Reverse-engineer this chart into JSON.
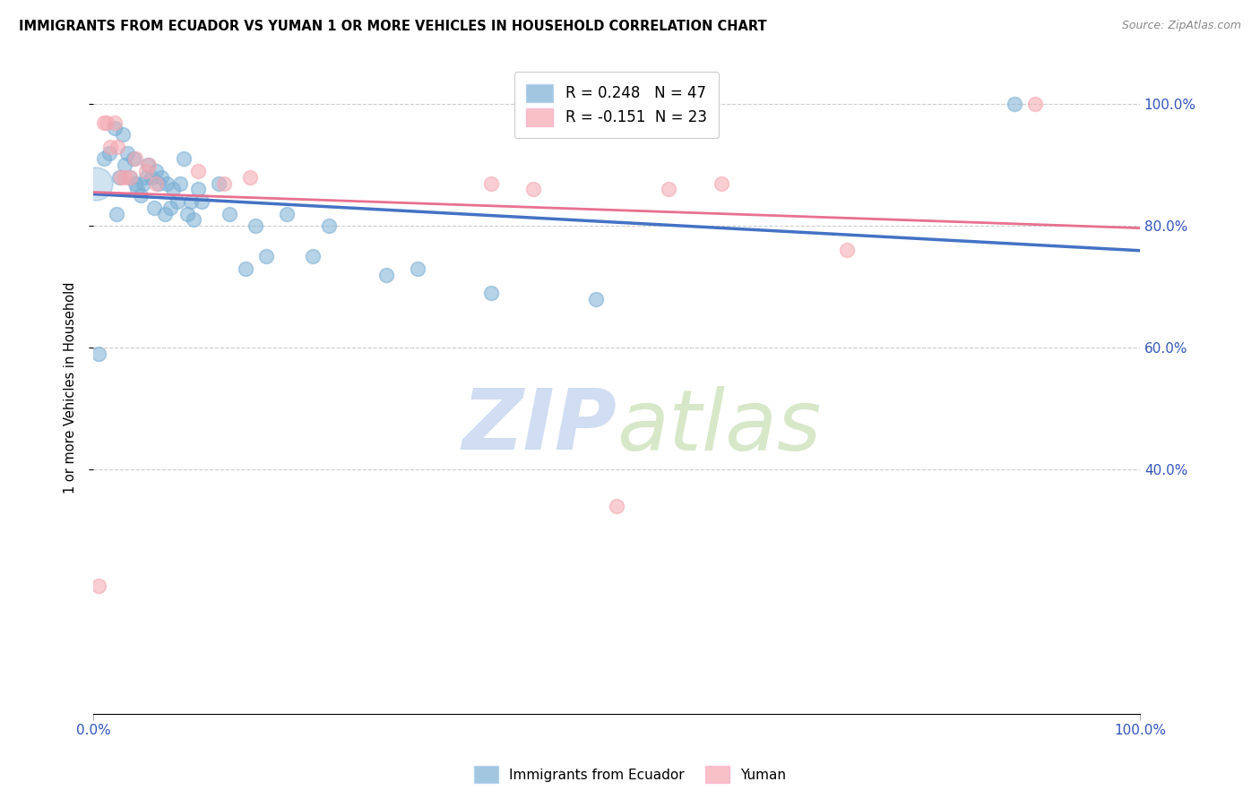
{
  "title": "IMMIGRANTS FROM ECUADOR VS YUMAN 1 OR MORE VEHICLES IN HOUSEHOLD CORRELATION CHART",
  "source": "Source: ZipAtlas.com",
  "ylabel": "1 or more Vehicles in Household",
  "legend_labels": [
    "Immigrants from Ecuador",
    "Yuman"
  ],
  "r_ecuador": 0.248,
  "n_ecuador": 47,
  "r_yuman": -0.151,
  "n_yuman": 23,
  "blue_color": "#7BAFD4",
  "pink_color": "#F4A7B0",
  "blue_line_color": "#4472C4",
  "pink_line_color": "#E87090",
  "watermark_zip": "ZIP",
  "watermark_atlas": "atlas",
  "ecuador_x": [
    0.5,
    1.0,
    1.5,
    2.0,
    2.2,
    2.5,
    2.8,
    3.0,
    3.2,
    3.5,
    3.8,
    4.0,
    4.2,
    4.5,
    4.8,
    5.0,
    5.2,
    5.5,
    5.8,
    6.0,
    6.2,
    6.5,
    6.8,
    7.0,
    7.3,
    7.6,
    8.0,
    8.3,
    8.6,
    9.0,
    9.3,
    9.6,
    10.0,
    10.3,
    12.0,
    13.0,
    14.5,
    15.5,
    16.5,
    18.5,
    21.0,
    22.5,
    28.0,
    31.0,
    38.0,
    48.0,
    88.0
  ],
  "ecuador_y": [
    59,
    91,
    92,
    96,
    82,
    88,
    95,
    90,
    92,
    88,
    91,
    87,
    86,
    85,
    87,
    88,
    90,
    88,
    83,
    89,
    87,
    88,
    82,
    87,
    83,
    86,
    84,
    87,
    91,
    82,
    84,
    81,
    86,
    84,
    87,
    82,
    73,
    80,
    75,
    82,
    75,
    80,
    72,
    73,
    69,
    68,
    100
  ],
  "yuman_x": [
    0.5,
    1.0,
    1.3,
    1.6,
    2.0,
    2.3,
    2.6,
    3.0,
    3.5,
    4.0,
    5.0,
    5.3,
    6.0,
    10.0,
    12.5,
    15.0,
    38.0,
    42.0,
    50.0,
    55.0,
    60.0,
    72.0,
    90.0
  ],
  "yuman_y": [
    21,
    97,
    97,
    93,
    97,
    93,
    88,
    88,
    88,
    91,
    89,
    90,
    87,
    89,
    87,
    88,
    87,
    86,
    34,
    86,
    87,
    76,
    100
  ]
}
